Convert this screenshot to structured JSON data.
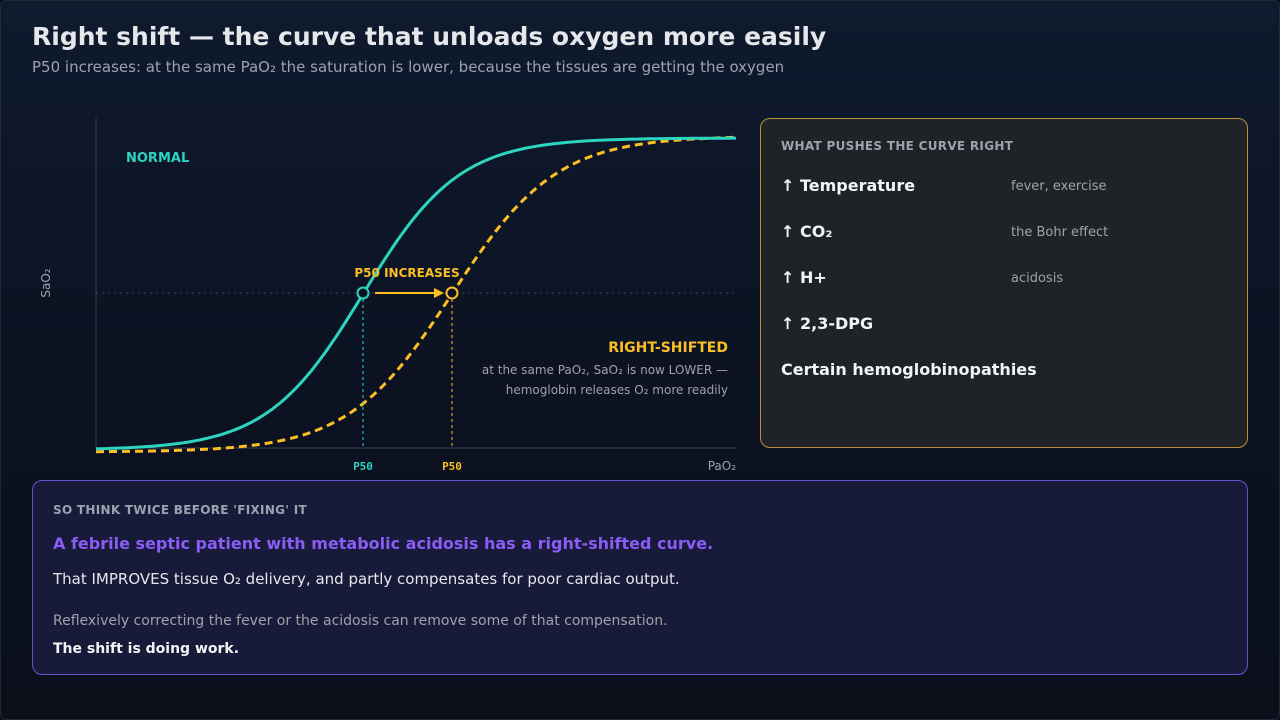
{
  "header": {
    "title": "Right shift — the curve that unloads oxygen more easily",
    "subtitle": "P50 increases: at the same PaO₂ the saturation is lower, because the tissues are getting the oxygen"
  },
  "chart": {
    "y_axis_label": "SaO₂",
    "x_axis_label": "PaO₂",
    "normal_label": "NORMAL",
    "shift_label": "P50 INCREASES",
    "right_label": "RIGHT-SHIFTED",
    "right_note_1": "at the same PaO₂, SaO₂ is now LOWER —",
    "right_note_2": "hemoglobin releases O₂ more readily",
    "p50_normal_tick": "P50",
    "p50_shifted_tick": "P50",
    "colors": {
      "normal": "#2dd4bf",
      "shifted": "#fbbf24"
    }
  },
  "factors": {
    "heading": "WHAT PUSHES THE CURVE RIGHT",
    "items": [
      {
        "name": "↑ Temperature",
        "note": "fever, exercise"
      },
      {
        "name": "↑ CO₂",
        "note": "the Bohr effect"
      },
      {
        "name": "↑ H+",
        "note": "acidosis"
      },
      {
        "name": "↑ 2,3-DPG",
        "note": ""
      },
      {
        "name": "Certain hemoglobinopathies",
        "note": ""
      }
    ]
  },
  "bottom": {
    "heading": "SO THINK TWICE BEFORE 'FIXING' IT",
    "highlight": "A febrile septic patient with metabolic acidosis has a right-shifted curve.",
    "line": "That IMPROVES tissue O₂ delivery, and partly compensates for poor cardiac output.",
    "muted": "Reflexively correcting the fever or the acidosis can remove some of that compensation.",
    "strong": "The shift is doing work."
  }
}
